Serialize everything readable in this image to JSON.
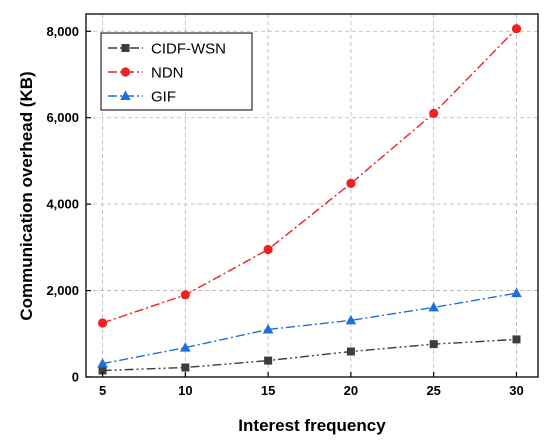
{
  "chart_data": {
    "type": "line",
    "x": [
      5,
      10,
      15,
      20,
      25,
      30
    ],
    "xlabel": "Interest frequency",
    "ylabel": "Communication overhead (KB)",
    "xlim": [
      4,
      31.3
    ],
    "ylim": [
      0,
      8400
    ],
    "xticks": [
      5,
      10,
      15,
      20,
      25,
      30
    ],
    "xtick_labels": [
      "5",
      "10",
      "15",
      "20",
      "25",
      "30"
    ],
    "yticks": [
      0,
      2000,
      4000,
      6000,
      8000
    ],
    "ytick_labels": [
      "0",
      "2,000",
      "4,000",
      "6,000",
      "8,000"
    ],
    "grid": true,
    "legend_position": "top-left",
    "series": [
      {
        "name": "CIDF-WSN",
        "values": [
          150,
          220,
          380,
          590,
          760,
          870
        ],
        "color": "#3c3c3c",
        "marker": "square",
        "line_style": "dash-dot-dot"
      },
      {
        "name": "NDN",
        "values": [
          1250,
          1900,
          2950,
          4480,
          6100,
          8060
        ],
        "color": "#ee2020",
        "marker": "circle",
        "line_style": "dash-dot"
      },
      {
        "name": "GIF",
        "values": [
          310,
          680,
          1100,
          1310,
          1610,
          1940
        ],
        "color": "#1f6fd6",
        "marker": "triangle",
        "line_style": "dash-dot"
      }
    ]
  }
}
